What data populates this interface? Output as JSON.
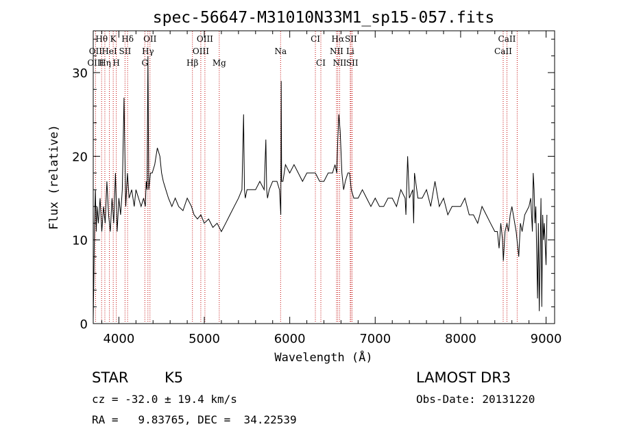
{
  "chart_data": {
    "type": "line",
    "title": "spec-56647-M31010N33M1_sp15-057.fits",
    "xlabel": "Wavelength (Å)",
    "ylabel": "Flux (relative)",
    "xlim": [
      3700,
      9100
    ],
    "ylim": [
      0,
      35
    ],
    "xticks": [
      4000,
      5000,
      6000,
      7000,
      8000,
      9000
    ],
    "xtick_labels": [
      "4000",
      "5000",
      "6000",
      "7000",
      "8000",
      "9000"
    ],
    "yticks": [
      0,
      10,
      20,
      30
    ],
    "ytick_labels": [
      "0",
      "10",
      "20",
      "30"
    ],
    "grid": false,
    "series": [
      {
        "name": "spectrum",
        "x": [
          3700,
          3708,
          3715,
          3725,
          3735,
          3745,
          3760,
          3780,
          3800,
          3820,
          3840,
          3860,
          3880,
          3900,
          3920,
          3940,
          3960,
          3980,
          4000,
          4020,
          4040,
          4060,
          4080,
          4100,
          4120,
          4150,
          4180,
          4200,
          4230,
          4260,
          4290,
          4310,
          4320,
          4330,
          4340,
          4350,
          4360,
          4370,
          4390,
          4420,
          4450,
          4480,
          4500,
          4520,
          4550,
          4580,
          4620,
          4660,
          4700,
          4750,
          4800,
          4850,
          4880,
          4920,
          4960,
          5000,
          5050,
          5100,
          5150,
          5200,
          5250,
          5300,
          5350,
          5400,
          5440,
          5460,
          5470,
          5480,
          5500,
          5550,
          5600,
          5650,
          5700,
          5720,
          5730,
          5740,
          5760,
          5800,
          5850,
          5880,
          5895,
          5900,
          5905,
          5920,
          5950,
          6000,
          6050,
          6100,
          6150,
          6200,
          6250,
          6300,
          6350,
          6400,
          6450,
          6500,
          6530,
          6550,
          6562,
          6575,
          6590,
          6610,
          6630,
          6650,
          6680,
          6700,
          6720,
          6750,
          6800,
          6850,
          6900,
          6950,
          7000,
          7050,
          7100,
          7150,
          7200,
          7250,
          7300,
          7350,
          7360,
          7380,
          7400,
          7440,
          7450,
          7460,
          7500,
          7550,
          7600,
          7650,
          7700,
          7750,
          7800,
          7850,
          7900,
          7950,
          8000,
          8050,
          8100,
          8150,
          8200,
          8250,
          8300,
          8350,
          8400,
          8430,
          8450,
          8470,
          8490,
          8500,
          8520,
          8542,
          8560,
          8580,
          8600,
          8650,
          8680,
          8700,
          8720,
          8750,
          8800,
          8820,
          8840,
          8850,
          8860,
          8870,
          8880,
          8900,
          8910,
          8920,
          8940,
          8950,
          8960,
          8970,
          8980,
          9000,
          9010
        ],
        "y": [
          0.5,
          6,
          12,
          16,
          11,
          14,
          12,
          15,
          11,
          14,
          12,
          17,
          13,
          11,
          15,
          12,
          18,
          11,
          15,
          13,
          16,
          27,
          14,
          18,
          15,
          16,
          14,
          16,
          15,
          14,
          15,
          14,
          17,
          16,
          32,
          16,
          17,
          18,
          18,
          19,
          21,
          20,
          18,
          17,
          16,
          15,
          14,
          15,
          14,
          13.5,
          15,
          14,
          13,
          12.5,
          13,
          12,
          12.5,
          11.5,
          12,
          11,
          12,
          13,
          14,
          15,
          16,
          25,
          16,
          15,
          16,
          16,
          16,
          17,
          16,
          22,
          16,
          15,
          16,
          17,
          17,
          16,
          13,
          29,
          17,
          17,
          19,
          18,
          19,
          18,
          17,
          18,
          18,
          18,
          17,
          17,
          18,
          18,
          19,
          18,
          22,
          25,
          23,
          18,
          16,
          17,
          18,
          18,
          16,
          15,
          15,
          16,
          15,
          14,
          15,
          14,
          14,
          15,
          15,
          14,
          16,
          15,
          13,
          20,
          15,
          16,
          12,
          18,
          15,
          15,
          16,
          14,
          17,
          14,
          15,
          13,
          14,
          14,
          14,
          15,
          13,
          13,
          12,
          14,
          13,
          12,
          11,
          11,
          9,
          12,
          10,
          7.5,
          11,
          12,
          11,
          13,
          14,
          11,
          8,
          12,
          11,
          13,
          14,
          15,
          11,
          18,
          16,
          12,
          14,
          3,
          12,
          1.5,
          15,
          2,
          13,
          10,
          12,
          7,
          13
        ]
      }
    ],
    "lines": [
      {
        "label": "Hθ",
        "x": 3798
      },
      {
        "label": "K",
        "x": 3934
      },
      {
        "label": "Hδ",
        "x": 4102
      },
      {
        "label": "OII",
        "x": 4364
      },
      {
        "label": "OIII",
        "x": 5007
      },
      {
        "label": "CI",
        "x": 6300
      },
      {
        "label": "Hα",
        "x": 6563
      },
      {
        "label": "SII",
        "x": 6716
      },
      {
        "label": "CaII",
        "x": 8542
      },
      {
        "label": "OII",
        "x": 3727
      },
      {
        "label": "HeI",
        "x": 3889
      },
      {
        "label": "SII",
        "x": 4072
      },
      {
        "label": "Hγ",
        "x": 4340
      },
      {
        "label": "OIII",
        "x": 4959
      },
      {
        "label": "Na",
        "x": 5893
      },
      {
        "label": "NII",
        "x": 6548
      },
      {
        "label": "Li",
        "x": 6708
      },
      {
        "label": "CaII",
        "x": 8498
      },
      {
        "label": "OIII",
        "x": 3727
      },
      {
        "label": "Hη",
        "x": 3836
      },
      {
        "label": "H",
        "x": 3970
      },
      {
        "label": "G",
        "x": 4304
      },
      {
        "label": "Hβ",
        "x": 4861
      },
      {
        "label": "Mg",
        "x": 5175
      },
      {
        "label": "CI",
        "x": 6364
      },
      {
        "label": "NII",
        "x": 6584
      },
      {
        "label": "SII",
        "x": 6731
      },
      {
        "label": "CaII",
        "x": 8662
      }
    ]
  },
  "info": {
    "class_label": "STAR",
    "subclass": "K5",
    "survey": "LAMOST DR3",
    "cz": "cz = -32.0 ± 19.4 km/s",
    "obs_date": "Obs-Date: 20131220",
    "coords": "RA =   9.83765, DEC =  34.22539"
  },
  "colors": {
    "axis": "#000000",
    "line_marker": "#c00000",
    "spectrum": "#000000"
  }
}
